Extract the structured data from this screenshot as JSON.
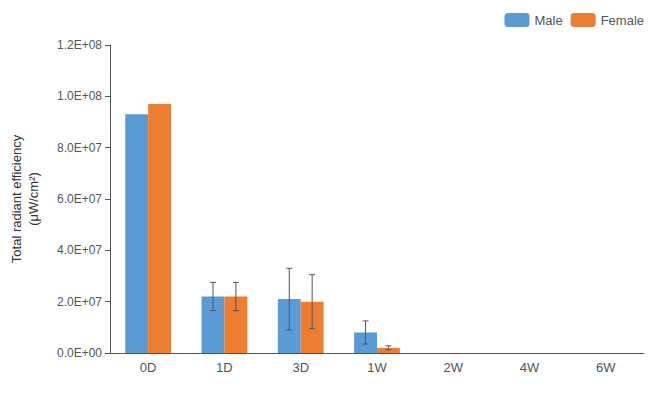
{
  "chart_data": {
    "type": "bar",
    "ylabel": "Total radiant efficiency\n(μW/cm²)",
    "categories": [
      "0D",
      "1D",
      "3D",
      "1W",
      "2W",
      "4W",
      "6W"
    ],
    "series": [
      {
        "name": "Male",
        "color": "#5B9BD5",
        "values": [
          93000000,
          22000000,
          21000000,
          8000000,
          0,
          0,
          0
        ],
        "errors": [
          0,
          5500000,
          12000000,
          4500000,
          0,
          0,
          0
        ]
      },
      {
        "name": "Female",
        "color": "#ED7D31",
        "values": [
          97000000,
          22000000,
          20000000,
          2000000,
          0,
          0,
          0
        ],
        "errors": [
          0,
          5500000,
          10500000,
          800000,
          0,
          0,
          0
        ]
      }
    ],
    "ylim": [
      0,
      120000000
    ],
    "yticks": [
      {
        "value": 0,
        "label": "0.0E+00"
      },
      {
        "value": 20000000,
        "label": "2.0E+07"
      },
      {
        "value": 40000000,
        "label": "4.0E+07"
      },
      {
        "value": 60000000,
        "label": "6.0E+07"
      },
      {
        "value": 80000000,
        "label": "8.0E+07"
      },
      {
        "value": 100000000,
        "label": "1.0E+08"
      },
      {
        "value": 120000000,
        "label": "1.2E+08"
      }
    ],
    "legend": "upper right",
    "grid": false
  }
}
